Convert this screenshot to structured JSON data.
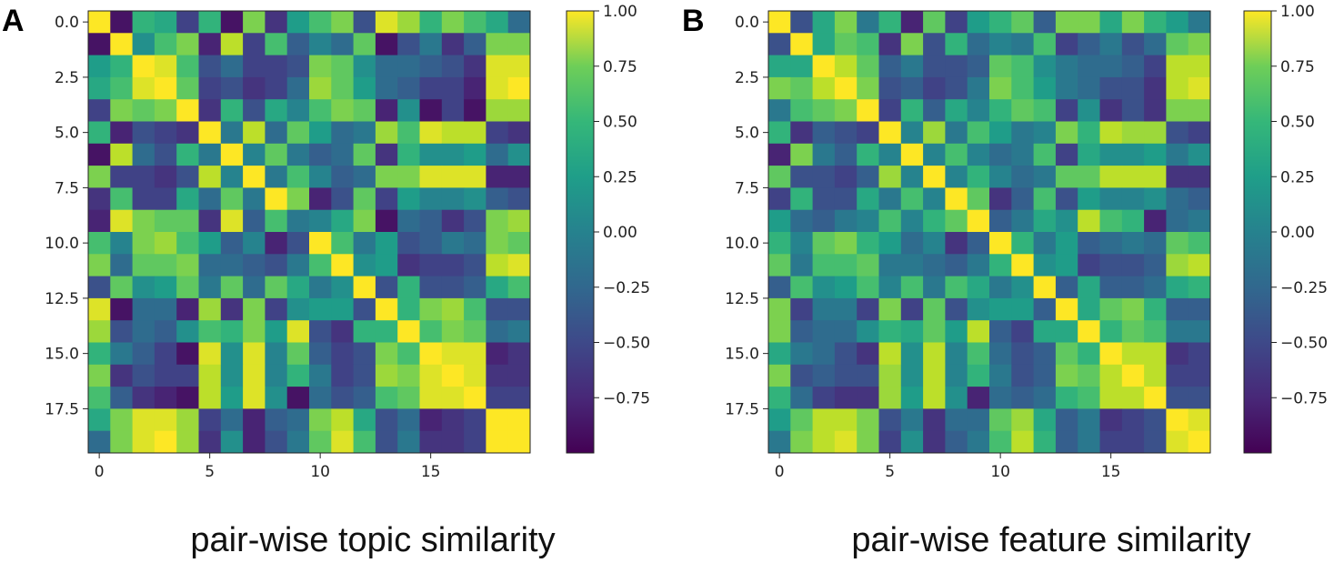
{
  "chart_data": [
    {
      "type": "heatmap",
      "panel": "A",
      "title": "pair-wise topic similarity",
      "size": 20,
      "xticks": [
        {
          "v": 0,
          "l": "0"
        },
        {
          "v": 5,
          "l": "5"
        },
        {
          "v": 10,
          "l": "10"
        },
        {
          "v": 15,
          "l": "15"
        }
      ],
      "yticks": [
        {
          "v": 0,
          "l": "0.0"
        },
        {
          "v": 2.5,
          "l": "2.5"
        },
        {
          "v": 5,
          "l": "5.0"
        },
        {
          "v": 7.5,
          "l": "7.5"
        },
        {
          "v": 10,
          "l": "10.0"
        },
        {
          "v": 12.5,
          "l": "12.5"
        },
        {
          "v": 15,
          "l": "15.0"
        },
        {
          "v": 17.5,
          "l": "17.5"
        }
      ],
      "colorbar": {
        "vmin": -1.0,
        "vmax": 1.0,
        "ticks": [
          {
            "v": 1.0,
            "l": "1.00"
          },
          {
            "v": 0.75,
            "l": "0.75"
          },
          {
            "v": 0.5,
            "l": "0.50"
          },
          {
            "v": 0.25,
            "l": "0.25"
          },
          {
            "v": 0.0,
            "l": "0.00"
          },
          {
            "v": -0.25,
            "l": "−0.25"
          },
          {
            "v": -0.5,
            "l": "−0.50"
          },
          {
            "v": -0.75,
            "l": "−0.75"
          }
        ]
      },
      "matrix": [
        [
          1.0,
          -0.9,
          0.3,
          0.2,
          -0.6,
          0.3,
          -0.9,
          0.6,
          -0.7,
          0.1,
          0.4,
          0.6,
          -0.5,
          0.9,
          0.7,
          0.3,
          0.6,
          0.4,
          0.2,
          -0.3
        ],
        [
          -0.9,
          1.0,
          0.0,
          0.4,
          0.6,
          -0.8,
          0.8,
          -0.6,
          0.4,
          -0.4,
          -0.1,
          -0.3,
          0.5,
          -0.9,
          -0.5,
          -0.2,
          -0.7,
          -0.4,
          0.6,
          0.6
        ],
        [
          0.1,
          0.3,
          1.0,
          0.9,
          0.4,
          -0.5,
          -0.3,
          -0.6,
          -0.6,
          -0.5,
          0.6,
          0.5,
          0.0,
          -0.3,
          -0.3,
          -0.4,
          -0.5,
          -0.7,
          0.9,
          0.9
        ],
        [
          0.2,
          0.4,
          0.9,
          1.0,
          0.5,
          -0.6,
          -0.5,
          -0.7,
          -0.6,
          -0.3,
          0.7,
          0.5,
          0.1,
          -0.3,
          -0.4,
          -0.6,
          -0.6,
          -0.8,
          0.9,
          1.0
        ],
        [
          -0.6,
          0.6,
          0.5,
          0.6,
          1.0,
          -0.7,
          0.3,
          -0.5,
          0.2,
          -0.1,
          0.4,
          0.6,
          0.5,
          -0.8,
          0.0,
          -0.9,
          -0.6,
          -0.9,
          0.7,
          0.7
        ],
        [
          0.3,
          -0.8,
          -0.5,
          -0.6,
          -0.7,
          1.0,
          -0.2,
          0.8,
          -0.3,
          0.5,
          0.1,
          -0.3,
          -0.2,
          0.7,
          0.4,
          0.9,
          0.8,
          0.8,
          -0.6,
          -0.7
        ],
        [
          -0.9,
          0.8,
          -0.3,
          -0.5,
          0.3,
          -0.2,
          1.0,
          -0.1,
          0.5,
          -0.2,
          -0.4,
          -0.3,
          0.5,
          -0.7,
          0.3,
          0.0,
          0.0,
          0.1,
          -0.3,
          0.0
        ],
        [
          0.6,
          -0.6,
          -0.6,
          -0.7,
          -0.5,
          0.8,
          -0.1,
          1.0,
          -0.2,
          0.4,
          -0.1,
          -0.4,
          -0.3,
          0.6,
          0.6,
          0.9,
          0.9,
          0.9,
          -0.8,
          -0.8
        ],
        [
          -0.7,
          0.4,
          -0.6,
          -0.6,
          0.2,
          -0.3,
          0.5,
          -0.2,
          1.0,
          0.6,
          -0.8,
          -0.5,
          0.5,
          -0.6,
          0.1,
          -0.1,
          -0.1,
          0.0,
          -0.4,
          -0.5
        ],
        [
          -0.8,
          0.9,
          0.6,
          0.5,
          0.5,
          -0.7,
          0.9,
          -0.4,
          0.4,
          -0.2,
          -0.1,
          0.2,
          0.6,
          -0.9,
          -0.3,
          -0.4,
          -0.7,
          -0.5,
          0.6,
          0.7
        ],
        [
          0.4,
          -0.1,
          0.6,
          0.7,
          0.4,
          0.1,
          -0.4,
          -0.1,
          -0.8,
          -0.5,
          1.0,
          0.4,
          -0.2,
          0.1,
          -0.5,
          -0.4,
          -0.2,
          -0.3,
          0.6,
          0.5
        ],
        [
          0.6,
          -0.3,
          0.5,
          0.5,
          0.6,
          -0.3,
          -0.3,
          -0.4,
          -0.5,
          -0.2,
          0.4,
          1.0,
          0.0,
          0.1,
          -0.7,
          -0.6,
          -0.6,
          -0.5,
          0.8,
          0.9
        ],
        [
          -0.5,
          0.5,
          0.0,
          0.1,
          0.5,
          -0.2,
          0.5,
          -0.3,
          0.5,
          0.2,
          -0.2,
          0.0,
          1.0,
          -0.5,
          0.3,
          -0.5,
          -0.5,
          -0.4,
          0.2,
          0.4
        ],
        [
          0.9,
          -0.9,
          -0.3,
          -0.3,
          -0.8,
          0.7,
          -0.7,
          0.6,
          -0.6,
          0.0,
          0.1,
          0.1,
          -0.5,
          1.0,
          0.3,
          0.6,
          0.7,
          0.4,
          -0.5,
          -0.5
        ],
        [
          0.7,
          -0.5,
          -0.3,
          -0.4,
          0.0,
          0.4,
          0.3,
          0.6,
          0.1,
          0.9,
          -0.5,
          -0.7,
          0.3,
          0.3,
          1.0,
          0.4,
          0.6,
          0.5,
          -0.3,
          -0.2
        ],
        [
          0.3,
          -0.2,
          -0.4,
          -0.6,
          -0.9,
          0.9,
          0.0,
          0.9,
          -0.1,
          0.5,
          -0.4,
          -0.6,
          -0.5,
          0.6,
          0.4,
          1.0,
          0.9,
          0.9,
          -0.8,
          -0.7
        ],
        [
          0.6,
          -0.7,
          -0.5,
          -0.6,
          -0.6,
          0.8,
          0.0,
          0.9,
          -0.1,
          0.3,
          -0.2,
          -0.6,
          -0.5,
          0.7,
          0.6,
          0.9,
          1.0,
          0.9,
          -0.7,
          -0.7
        ],
        [
          0.4,
          -0.4,
          -0.7,
          -0.8,
          -0.9,
          0.8,
          0.1,
          0.9,
          0.0,
          -0.9,
          -0.3,
          -0.5,
          -0.4,
          0.4,
          0.5,
          0.9,
          0.9,
          1.0,
          -0.6,
          -0.6
        ],
        [
          0.2,
          0.6,
          0.9,
          0.9,
          0.7,
          -0.6,
          -0.3,
          -0.8,
          -0.4,
          -0.3,
          0.6,
          0.8,
          0.2,
          -0.5,
          -0.3,
          -0.8,
          -0.7,
          -0.6,
          1.0,
          1.0
        ],
        [
          -0.3,
          0.6,
          0.9,
          1.0,
          0.7,
          -0.7,
          0.0,
          -0.8,
          -0.5,
          -0.2,
          0.5,
          0.9,
          0.4,
          -0.5,
          -0.2,
          -0.7,
          -0.7,
          -0.6,
          1.0,
          1.0
        ]
      ]
    },
    {
      "type": "heatmap",
      "panel": "B",
      "title": "pair-wise feature similarity",
      "size": 20,
      "xticks": [
        {
          "v": 0,
          "l": "0"
        },
        {
          "v": 5,
          "l": "5"
        },
        {
          "v": 10,
          "l": "10"
        },
        {
          "v": 15,
          "l": "15"
        }
      ],
      "yticks": [
        {
          "v": 0,
          "l": "0.0"
        },
        {
          "v": 2.5,
          "l": "2.5"
        },
        {
          "v": 5,
          "l": "5.0"
        },
        {
          "v": 7.5,
          "l": "7.5"
        },
        {
          "v": 10,
          "l": "10.0"
        },
        {
          "v": 12.5,
          "l": "12.5"
        },
        {
          "v": 15,
          "l": "15.0"
        },
        {
          "v": 17.5,
          "l": "17.5"
        }
      ],
      "colorbar": {
        "vmin": -1.0,
        "vmax": 1.0,
        "ticks": [
          {
            "v": 1.0,
            "l": "1.00"
          },
          {
            "v": 0.75,
            "l": "0.75"
          },
          {
            "v": 0.5,
            "l": "0.50"
          },
          {
            "v": 0.25,
            "l": "0.25"
          },
          {
            "v": 0.0,
            "l": "0.00"
          },
          {
            "v": -0.25,
            "l": "−0.25"
          },
          {
            "v": -0.5,
            "l": "−0.50"
          },
          {
            "v": -0.75,
            "l": "−0.75"
          }
        ]
      },
      "matrix": [
        [
          1.0,
          -0.5,
          0.2,
          0.6,
          -0.2,
          0.3,
          -0.8,
          0.5,
          -0.6,
          0.1,
          0.3,
          0.5,
          -0.4,
          0.6,
          0.6,
          0.2,
          0.6,
          0.3,
          0.1,
          -0.2
        ],
        [
          -0.5,
          1.0,
          0.2,
          0.5,
          0.4,
          -0.7,
          0.6,
          -0.5,
          0.3,
          -0.3,
          -0.1,
          -0.2,
          0.4,
          -0.6,
          -0.4,
          -0.2,
          -0.5,
          -0.3,
          0.5,
          0.6
        ],
        [
          0.2,
          0.2,
          1.0,
          0.8,
          0.5,
          -0.4,
          -0.2,
          -0.5,
          -0.5,
          -0.4,
          0.5,
          0.4,
          0.0,
          -0.2,
          -0.3,
          -0.3,
          -0.4,
          -0.6,
          0.8,
          0.8
        ],
        [
          0.6,
          0.5,
          0.8,
          1.0,
          0.6,
          -0.5,
          -0.4,
          -0.6,
          -0.5,
          -0.2,
          0.6,
          0.4,
          0.1,
          -0.2,
          -0.3,
          -0.5,
          -0.5,
          -0.7,
          0.8,
          0.9
        ],
        [
          -0.2,
          0.4,
          0.5,
          0.6,
          1.0,
          -0.6,
          0.3,
          -0.4,
          0.2,
          -0.1,
          0.3,
          0.5,
          0.4,
          -0.6,
          0.0,
          -0.7,
          -0.5,
          -0.7,
          0.6,
          0.6
        ],
        [
          0.3,
          -0.7,
          -0.4,
          -0.5,
          -0.6,
          1.0,
          -0.1,
          0.7,
          -0.2,
          0.4,
          0.1,
          -0.2,
          -0.1,
          0.6,
          0.3,
          0.8,
          0.7,
          0.7,
          -0.5,
          -0.6
        ],
        [
          -0.8,
          0.6,
          -0.2,
          -0.4,
          0.3,
          -0.1,
          1.0,
          -0.1,
          0.4,
          -0.1,
          -0.3,
          -0.2,
          0.4,
          -0.6,
          0.2,
          0.0,
          0.0,
          0.1,
          -0.2,
          0.0
        ],
        [
          0.5,
          -0.5,
          -0.5,
          -0.6,
          -0.4,
          0.7,
          -0.1,
          1.0,
          -0.1,
          0.3,
          -0.1,
          -0.3,
          -0.2,
          0.5,
          0.5,
          0.8,
          0.8,
          0.8,
          -0.7,
          -0.7
        ],
        [
          -0.6,
          0.3,
          -0.5,
          -0.5,
          0.2,
          -0.2,
          0.4,
          -0.1,
          1.0,
          0.5,
          -0.7,
          -0.4,
          0.4,
          -0.5,
          0.1,
          -0.1,
          -0.1,
          0.0,
          -0.3,
          -0.4
        ],
        [
          0.1,
          -0.3,
          -0.4,
          -0.2,
          -0.1,
          0.4,
          -0.1,
          0.3,
          0.5,
          1.0,
          -0.4,
          -0.2,
          0.2,
          0.0,
          0.8,
          0.4,
          0.3,
          -0.8,
          -0.3,
          -0.2
        ],
        [
          0.3,
          -0.1,
          0.5,
          0.6,
          0.3,
          0.1,
          -0.3,
          -0.1,
          -0.7,
          -0.4,
          1.0,
          0.3,
          -0.2,
          0.1,
          -0.4,
          -0.3,
          -0.2,
          -0.3,
          0.5,
          0.4
        ],
        [
          0.5,
          -0.2,
          0.4,
          0.4,
          0.5,
          -0.2,
          -0.2,
          -0.3,
          -0.4,
          -0.2,
          0.3,
          1.0,
          0.0,
          0.1,
          -0.6,
          -0.5,
          -0.5,
          -0.4,
          0.7,
          0.8
        ],
        [
          -0.4,
          0.4,
          0.0,
          0.1,
          0.4,
          -0.1,
          0.4,
          -0.2,
          0.4,
          0.2,
          -0.2,
          0.0,
          1.0,
          -0.4,
          0.2,
          -0.4,
          -0.4,
          -0.3,
          0.2,
          0.3
        ],
        [
          0.6,
          -0.6,
          -0.2,
          -0.2,
          -0.6,
          0.6,
          -0.6,
          0.5,
          -0.5,
          0.0,
          0.1,
          0.1,
          -0.4,
          1.0,
          0.2,
          0.5,
          0.6,
          0.3,
          -0.4,
          -0.4
        ],
        [
          0.6,
          -0.4,
          -0.3,
          -0.3,
          0.0,
          0.3,
          0.2,
          0.5,
          0.1,
          0.8,
          -0.4,
          -0.6,
          0.2,
          0.2,
          1.0,
          0.3,
          0.5,
          0.4,
          -0.2,
          -0.2
        ],
        [
          0.2,
          -0.2,
          -0.3,
          -0.5,
          -0.7,
          0.8,
          0.0,
          0.8,
          -0.1,
          0.4,
          -0.3,
          -0.5,
          -0.4,
          0.5,
          0.3,
          1.0,
          0.8,
          0.8,
          -0.7,
          -0.6
        ],
        [
          0.6,
          -0.5,
          -0.4,
          -0.5,
          -0.5,
          0.7,
          0.0,
          0.8,
          -0.1,
          0.3,
          -0.2,
          -0.5,
          -0.4,
          0.6,
          0.5,
          0.8,
          1.0,
          0.8,
          -0.6,
          -0.6
        ],
        [
          0.3,
          -0.3,
          -0.6,
          -0.7,
          -0.7,
          0.7,
          0.1,
          0.8,
          0.0,
          -0.8,
          -0.3,
          -0.4,
          -0.3,
          0.3,
          0.4,
          0.8,
          0.8,
          1.0,
          -0.5,
          -0.5
        ],
        [
          0.1,
          0.5,
          0.8,
          0.8,
          0.6,
          -0.5,
          -0.2,
          -0.7,
          -0.3,
          -0.3,
          0.5,
          0.7,
          0.2,
          -0.4,
          -0.2,
          -0.7,
          -0.6,
          -0.5,
          1.0,
          0.9
        ],
        [
          -0.2,
          0.6,
          0.8,
          0.9,
          0.6,
          -0.6,
          0.0,
          -0.7,
          -0.4,
          -0.2,
          0.4,
          0.8,
          0.3,
          -0.4,
          -0.2,
          -0.6,
          -0.6,
          -0.5,
          0.9,
          1.0
        ]
      ]
    }
  ]
}
